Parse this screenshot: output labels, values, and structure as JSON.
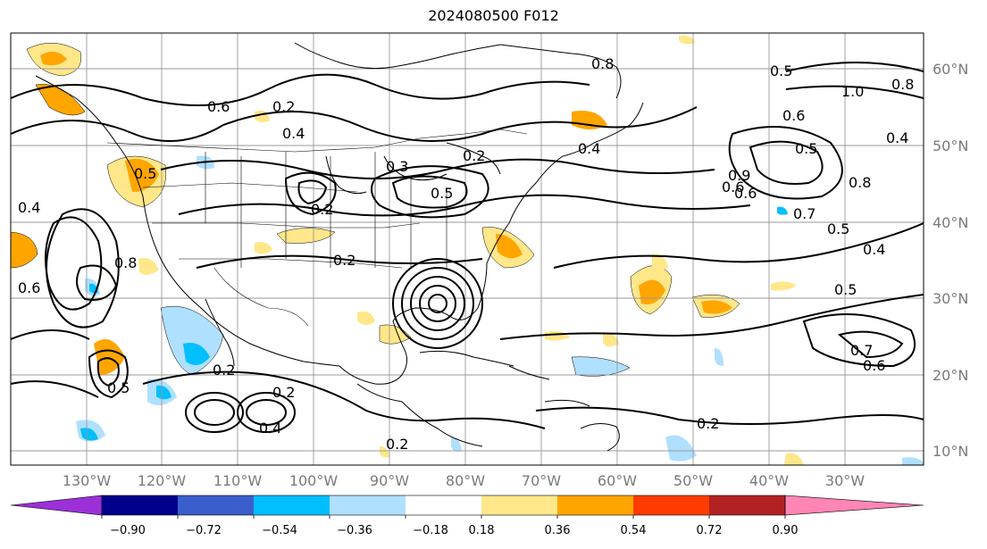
{
  "title": "2024080500 F012",
  "map": {
    "lon_ticks": [
      "130°W",
      "120°W",
      "110°W",
      "100°W",
      "90°W",
      "80°W",
      "70°W",
      "60°W",
      "50°W",
      "40°W",
      "30°W"
    ],
    "lat_ticks": [
      "60°N",
      "50°N",
      "40°N",
      "30°N",
      "20°N",
      "10°N"
    ],
    "contour_labels": [
      "0.2",
      "0.8",
      "0.6",
      "0.2",
      "0.4",
      "0.3",
      "0.5",
      "0.2",
      "0.5",
      "1.0",
      "0.8",
      "0.6",
      "0.5",
      "0.7",
      "0.6",
      "0.5",
      "0.4",
      "0.5",
      "0.6",
      "0.7",
      "0.4",
      "0.8",
      "0.2",
      "0.2",
      "0.2",
      "0.4",
      "0.2",
      "0.6",
      "0.5",
      "0.9",
      "0.8",
      "0.6",
      "0.5",
      "0.4",
      "0.4",
      "0.2"
    ]
  },
  "colorbar": {
    "ticks": [
      "−0.90",
      "−0.72",
      "−0.54",
      "−0.36",
      "−0.18",
      "0.18",
      "0.36",
      "0.54",
      "0.72",
      "0.90"
    ],
    "colors": [
      "#9b30d9",
      "#00008b",
      "#3a5fcd",
      "#00bfff",
      "#b0e0ff",
      "#ffffff",
      "#ffe78a",
      "#ffa500",
      "#ff3c00",
      "#b22222",
      "#ff85b5"
    ]
  }
}
